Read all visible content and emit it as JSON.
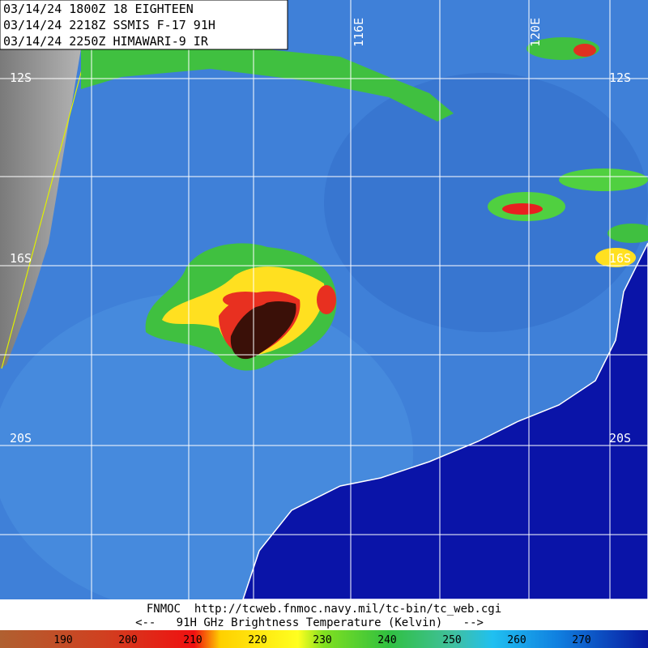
{
  "header": {
    "lines": [
      "03/14/24 1800Z  18 EIGHTEEN",
      "03/14/24 2218Z  SSMIS F-17 91H",
      "03/14/24 2250Z  HIMAWARI-9 IR"
    ]
  },
  "map": {
    "lat_labels": [
      "12S",
      "12S",
      "16S",
      "16S",
      "20S",
      "20S"
    ],
    "lon_labels": [
      "116E",
      "120E"
    ]
  },
  "footer": {
    "source": "FNMOC  http://tcweb.fnmoc.navy.mil/tc-bin/tc_web.cgi",
    "caption": "<--   91H GHz Brightness Temperature (Kelvin)   -->"
  },
  "colorbar": {
    "labels": [
      190,
      200,
      210,
      220,
      230,
      240,
      250,
      260,
      270
    ]
  }
}
